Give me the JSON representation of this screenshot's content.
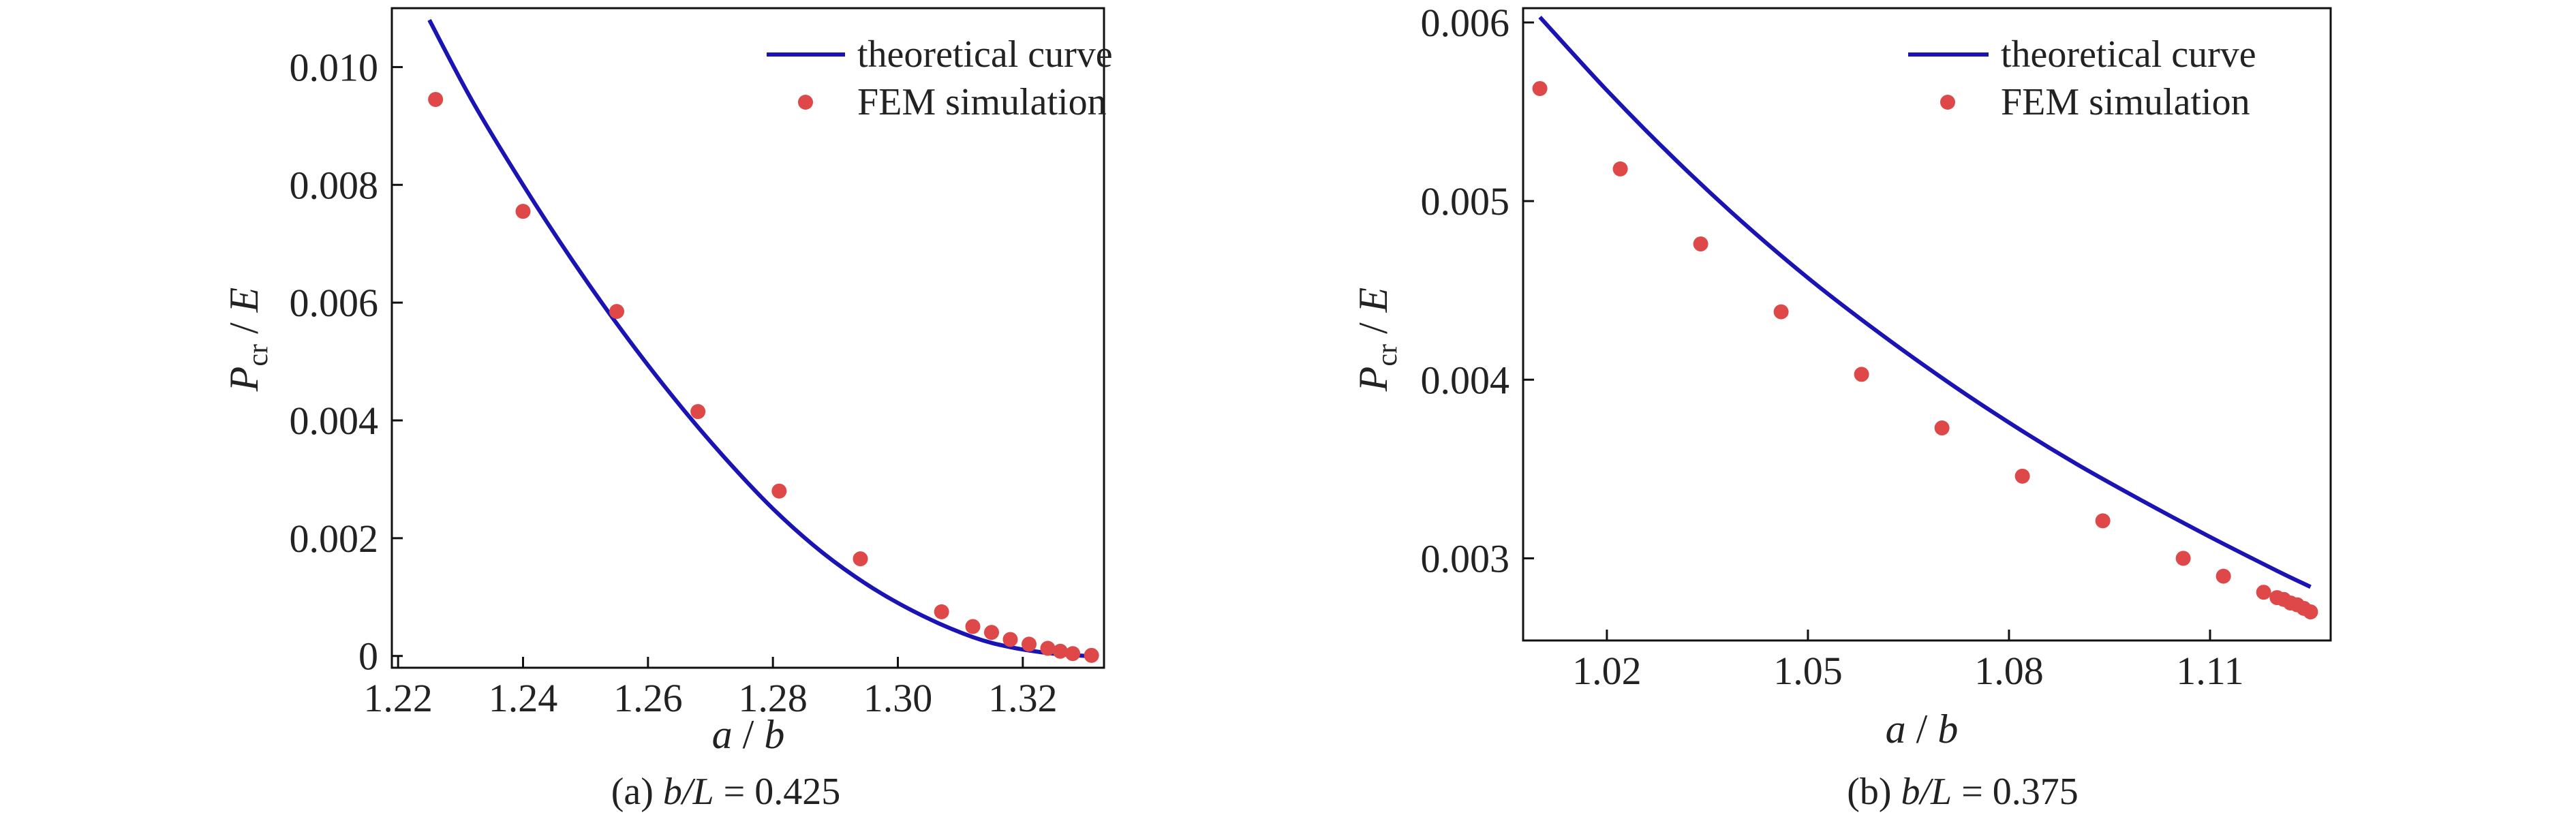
{
  "chart_data": [
    {
      "type": "line",
      "panel_caption": {
        "prefix": "(a) ",
        "var": "b/L",
        "rest": " = 0.425"
      },
      "xlabel": {
        "a": "a",
        "sep": " / ",
        "b": "b"
      },
      "ylabel": {
        "P": "P",
        "sub": "cr",
        "sep": " / ",
        "E": "E"
      },
      "xlim": [
        1.219,
        1.333
      ],
      "ylim": [
        -0.0002,
        0.011
      ],
      "xticks": [
        1.22,
        1.24,
        1.26,
        1.28,
        1.3,
        1.32
      ],
      "xtick_labels": [
        "1.22",
        "1.24",
        "1.26",
        "1.28",
        "1.30",
        "1.32"
      ],
      "yticks": [
        0,
        0.002,
        0.004,
        0.006,
        0.008,
        0.01
      ],
      "ytick_labels": [
        "0",
        "0.002",
        "0.004",
        "0.006",
        "0.008",
        "0.010"
      ],
      "legend_position": "top-right",
      "grid": false,
      "series": [
        {
          "name": "theoretical curve",
          "kind": "line",
          "color": "#1a14b4",
          "x": [
            1.225,
            1.232,
            1.24,
            1.248,
            1.256,
            1.264,
            1.272,
            1.28,
            1.288,
            1.296,
            1.304,
            1.312,
            1.318,
            1.324,
            1.33
          ],
          "y": [
            0.0108,
            0.0094,
            0.008,
            0.0067,
            0.0055,
            0.0044,
            0.0034,
            0.0025,
            0.00175,
            0.00115,
            0.00068,
            0.00032,
            0.00015,
            5e-05,
            0.0
          ]
        },
        {
          "name": "FEM simulation",
          "kind": "scatter",
          "color": "#de4848",
          "x": [
            1.226,
            1.24,
            1.255,
            1.268,
            1.281,
            1.294,
            1.307,
            1.312,
            1.315,
            1.318,
            1.321,
            1.324,
            1.326,
            1.328,
            1.331
          ],
          "y": [
            0.00945,
            0.00755,
            0.00585,
            0.00415,
            0.0028,
            0.00165,
            0.00075,
            0.0005,
            0.0004,
            0.00028,
            0.0002,
            0.00013,
            8e-05,
            4e-05,
            1e-05
          ]
        }
      ]
    },
    {
      "type": "line",
      "panel_caption": {
        "prefix": "(b) ",
        "var": "b/L",
        "rest": " = 0.375"
      },
      "xlabel": {
        "a": "a",
        "sep": " / ",
        "b": "b"
      },
      "ylabel": {
        "P": "P",
        "sub": "cr",
        "sep": " / ",
        "E": "E"
      },
      "xlim": [
        1.0075,
        1.128
      ],
      "ylim": [
        0.00254,
        0.00608
      ],
      "xticks": [
        1.02,
        1.05,
        1.08,
        1.11
      ],
      "xtick_labels": [
        "1.02",
        "1.05",
        "1.08",
        "1.11"
      ],
      "yticks": [
        0.003,
        0.004,
        0.005,
        0.006
      ],
      "ytick_labels": [
        "0.003",
        "0.004",
        "0.005",
        "0.006"
      ],
      "legend_position": "top-right",
      "grid": false,
      "series": [
        {
          "name": "theoretical curve",
          "kind": "line",
          "color": "#1a14b4",
          "x": [
            1.01,
            1.02,
            1.03,
            1.04,
            1.05,
            1.06,
            1.07,
            1.08,
            1.09,
            1.1,
            1.11,
            1.12,
            1.125
          ],
          "y": [
            0.00603,
            0.00562,
            0.00524,
            0.00489,
            0.00457,
            0.00428,
            0.00401,
            0.00376,
            0.00353,
            0.00332,
            0.00312,
            0.00293,
            0.00284
          ]
        },
        {
          "name": "FEM simulation",
          "kind": "scatter",
          "color": "#de4848",
          "x": [
            1.01,
            1.022,
            1.034,
            1.046,
            1.058,
            1.07,
            1.082,
            1.094,
            1.106,
            1.112,
            1.118,
            1.12,
            1.121,
            1.122,
            1.123,
            1.124,
            1.125
          ],
          "y": [
            0.00563,
            0.00518,
            0.00476,
            0.00438,
            0.00403,
            0.00373,
            0.00346,
            0.00321,
            0.003,
            0.0029,
            0.00281,
            0.00278,
            0.00277,
            0.00275,
            0.00274,
            0.00272,
            0.0027
          ]
        }
      ]
    }
  ]
}
